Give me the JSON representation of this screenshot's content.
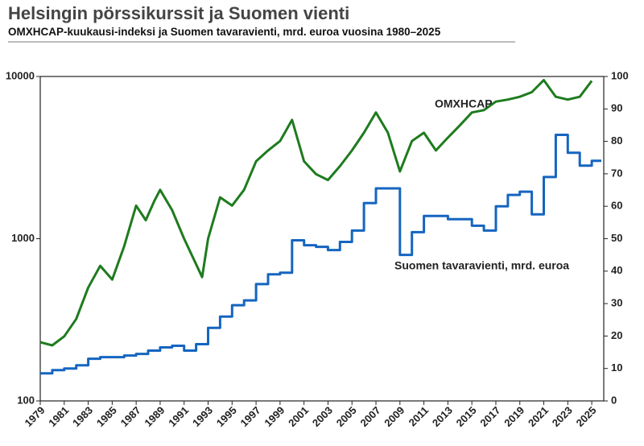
{
  "chart_data": {
    "type": "line",
    "title": "Helsingin pörssikurssit ja Suomen vienti",
    "subtitle": "OMXHCAP-kuukausi-indeksi ja Suomen tavaravienti, mrd. euroa vuosina 1980–2025",
    "xlim": [
      1979,
      2026
    ],
    "xticks": [
      1979,
      1981,
      1983,
      1985,
      1987,
      1989,
      1991,
      1993,
      1995,
      1997,
      1999,
      2001,
      2003,
      2005,
      2007,
      2009,
      2011,
      2013,
      2015,
      2017,
      2019,
      2021,
      2023,
      2025
    ],
    "ylim": [
      100,
      10000
    ],
    "ylog": true,
    "yticks": [
      100,
      1000,
      10000
    ],
    "y2lim": [
      0,
      100
    ],
    "y2ticks": [
      0,
      10,
      20,
      30,
      40,
      50,
      60,
      70,
      80,
      90,
      100
    ],
    "series": [
      {
        "name": "OMXHCAP",
        "color": "#1e7b1e",
        "x": [
          1979.0,
          1980.0,
          1981.0,
          1982.0,
          1983.0,
          1984.0,
          1985.0,
          1986.0,
          1987.0,
          1987.8,
          1988.5,
          1989.0,
          1990.0,
          1991.0,
          1992.5,
          1993.0,
          1994.0,
          1995.0,
          1996.0,
          1997.0,
          1998.0,
          1999.0,
          2000.0,
          2001.0,
          2002.0,
          2003.0,
          2004.0,
          2005.0,
          2006.0,
          2007.0,
          2008.0,
          2009.0,
          2010.0,
          2011.0,
          2012.0,
          2013.0,
          2014.0,
          2015.0,
          2016.0,
          2017.0,
          2018.0,
          2019.0,
          2020.0,
          2021.0,
          2022.0,
          2023.0,
          2024.0,
          2025.0
        ],
        "values": [
          230,
          220,
          250,
          320,
          500,
          680,
          560,
          900,
          1600,
          1300,
          1700,
          2000,
          1500,
          1000,
          580,
          1000,
          1800,
          1600,
          2000,
          3000,
          3500,
          4000,
          5400,
          3000,
          2500,
          2300,
          2800,
          3500,
          4500,
          6000,
          4500,
          2600,
          4000,
          4500,
          3500,
          4200,
          5000,
          6000,
          6200,
          7000,
          7200,
          7500,
          8000,
          9500,
          7500,
          7200,
          7500,
          9400
        ]
      },
      {
        "name": "Suomen tavaravienti, mrd. euroa",
        "color": "#1565c0",
        "axis": "y2",
        "x": [
          1979,
          1980,
          1981,
          1982,
          1983,
          1984,
          1985,
          1986,
          1987,
          1988,
          1989,
          1990,
          1991,
          1992,
          1993,
          1994,
          1995,
          1996,
          1997,
          1998,
          1999,
          2000,
          2001,
          2002,
          2003,
          2004,
          2005,
          2006,
          2007,
          2008,
          2009,
          2010,
          2011,
          2012,
          2013,
          2014,
          2015,
          2016,
          2017,
          2018,
          2019,
          2020,
          2021,
          2022,
          2023,
          2024,
          2025
        ],
        "values": [
          8.5,
          9.5,
          10,
          11,
          13,
          13.5,
          13.5,
          14,
          14.5,
          15.5,
          16.5,
          17,
          15.5,
          17.5,
          22.5,
          26,
          29.5,
          31,
          36,
          39,
          39.5,
          49.5,
          48,
          47.5,
          46.5,
          49,
          52.5,
          61,
          65.5,
          65.5,
          45,
          52,
          57,
          57,
          56,
          56,
          54,
          52.5,
          60,
          63.5,
          64.5,
          57.5,
          69,
          82,
          76.5,
          72.5,
          74
        ]
      }
    ]
  }
}
